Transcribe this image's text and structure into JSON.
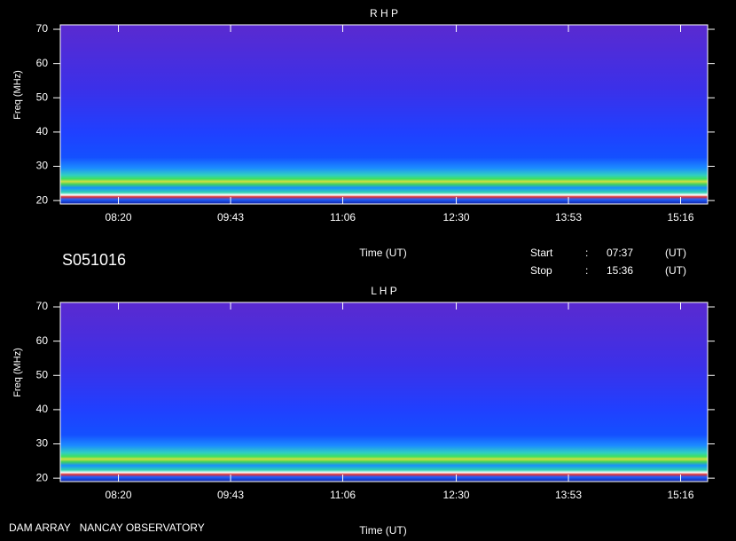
{
  "chart_data": [
    {
      "type": "spectrogram",
      "title": "R H P",
      "ylabel": "Freq (MHz)",
      "xlabel": "Time (UT)",
      "ylim": [
        19,
        71.3
      ],
      "yticks": [
        20,
        30,
        40,
        50,
        60,
        70
      ],
      "xlim": [
        457,
        936
      ],
      "xticks": [
        {
          "value": 500,
          "label": "08:20"
        },
        {
          "value": 583,
          "label": "09:43"
        },
        {
          "value": 666,
          "label": "11:06"
        },
        {
          "value": 750,
          "label": "12:30"
        },
        {
          "value": 833,
          "label": "13:53"
        },
        {
          "value": 916,
          "label": "15:16"
        }
      ]
    },
    {
      "type": "spectrogram",
      "title": "L H P",
      "ylabel": "Freq (MHz)",
      "xlabel": "Time (UT)",
      "ylim": [
        19,
        71.3
      ],
      "yticks": [
        20,
        30,
        40,
        50,
        60,
        70
      ],
      "xlim": [
        457,
        936
      ],
      "xticks": [
        {
          "value": 500,
          "label": "08:20"
        },
        {
          "value": 583,
          "label": "09:43"
        },
        {
          "value": 666,
          "label": "11:06"
        },
        {
          "value": 750,
          "label": "12:30"
        },
        {
          "value": 833,
          "label": "13:53"
        },
        {
          "value": 916,
          "label": "15:16"
        }
      ]
    }
  ],
  "info": {
    "id": "S051016",
    "start_label": "Start",
    "start_sep": ":",
    "start_time": "07:37",
    "start_unit": "(UT)",
    "stop_label": "Stop",
    "stop_sep": ":",
    "stop_time": "15:36",
    "stop_unit": "(UT)"
  },
  "footer": "DAM ARRAY   NANCAY OBSERVATORY"
}
